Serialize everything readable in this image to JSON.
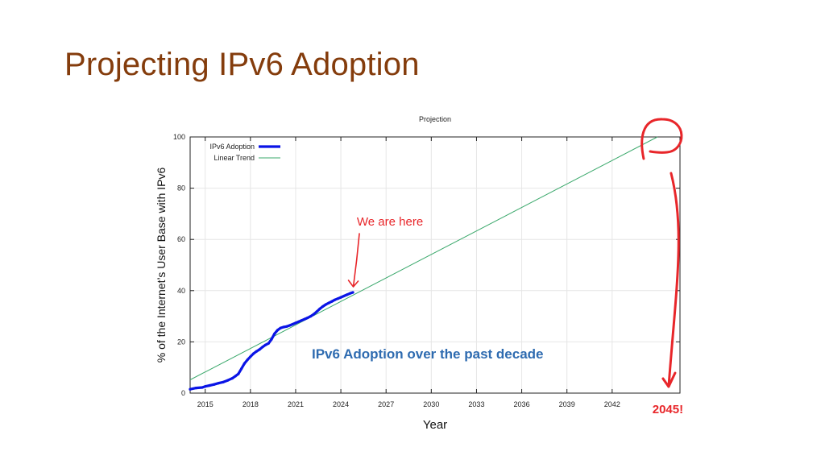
{
  "slide": {
    "title": "Projecting IPv6 Adoption"
  },
  "chart_data": {
    "type": "line",
    "title": "Projection",
    "xlabel": "Year",
    "ylabel": "% of the Internet’s User Base with IPv6",
    "xlim": [
      2014.0,
      2046.5
    ],
    "ylim": [
      0,
      100
    ],
    "x_ticks": [
      2015,
      2018,
      2021,
      2024,
      2027,
      2030,
      2033,
      2036,
      2039,
      2042
    ],
    "y_ticks": [
      0,
      20,
      40,
      60,
      80,
      100
    ],
    "grid": true,
    "legend_position": "top-left",
    "series": [
      {
        "name": "IPv6 Adoption",
        "color": "#0a14e6",
        "x": [
          2014.0,
          2014.4,
          2014.8,
          2015.0,
          2015.3,
          2015.6,
          2015.9,
          2016.2,
          2016.5,
          2016.8,
          2017.0,
          2017.2,
          2017.4,
          2017.6,
          2017.8,
          2018.0,
          2018.2,
          2018.4,
          2018.6,
          2018.8,
          2019.0,
          2019.2,
          2019.4,
          2019.6,
          2019.8,
          2020.0,
          2020.2,
          2020.4,
          2020.6,
          2020.8,
          2021.0,
          2021.2,
          2021.4,
          2021.6,
          2021.8,
          2022.0,
          2022.2,
          2022.4,
          2022.6,
          2022.8,
          2023.0,
          2023.2,
          2023.4,
          2023.6,
          2023.8,
          2024.0,
          2024.2,
          2024.4,
          2024.6,
          2024.8
        ],
        "y": [
          1.5,
          2.0,
          2.2,
          2.6,
          3.0,
          3.4,
          3.9,
          4.3,
          5.0,
          5.8,
          6.6,
          7.5,
          9.5,
          11.5,
          13.0,
          14.2,
          15.4,
          16.3,
          17.0,
          18.0,
          18.8,
          19.4,
          21.0,
          23.2,
          24.6,
          25.4,
          25.8,
          26.0,
          26.4,
          26.9,
          27.4,
          27.9,
          28.4,
          28.9,
          29.4,
          30.0,
          30.8,
          31.8,
          32.9,
          33.8,
          34.6,
          35.2,
          35.8,
          36.4,
          36.9,
          37.4,
          37.9,
          38.4,
          38.9,
          39.3
        ]
      },
      {
        "name": "Linear Trend",
        "color": "#3aa86b",
        "x": [
          2014.0,
          2045.0
        ],
        "y": [
          5.2,
          100
        ]
      }
    ],
    "annotations": {
      "here_label": "We are here",
      "caption": "IPv6 Adoption over the past decade",
      "end_year": "2045!"
    }
  },
  "colors": {
    "title": "#843c0c",
    "annotation_red": "#e8262a",
    "caption_blue": "#2e6bb0"
  }
}
